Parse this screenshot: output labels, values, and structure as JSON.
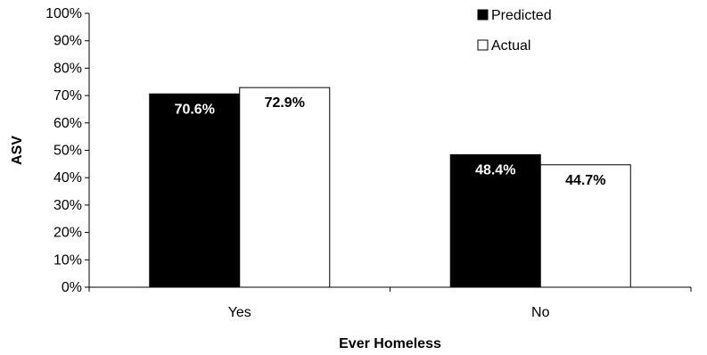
{
  "chart_data": {
    "type": "bar",
    "categories": [
      "Yes",
      "No"
    ],
    "series": [
      {
        "name": "Predicted",
        "values": [
          70.6,
          48.4
        ],
        "labels": [
          "70.6%",
          "48.4%"
        ],
        "fill": "#000000",
        "label_color": "#ffffff"
      },
      {
        "name": "Actual",
        "values": [
          72.9,
          44.7
        ],
        "labels": [
          "72.9%",
          "44.7%"
        ],
        "fill": "#ffffff",
        "label_color": "#000000"
      }
    ],
    "xlabel": "Ever Homeless",
    "ylabel": "ASV",
    "ylim": [
      0,
      100
    ],
    "yticks": [
      "0%",
      "10%",
      "20%",
      "30%",
      "40%",
      "50%",
      "60%",
      "70%",
      "80%",
      "90%",
      "100%"
    ],
    "grid": false,
    "legend_position": "top-right"
  }
}
